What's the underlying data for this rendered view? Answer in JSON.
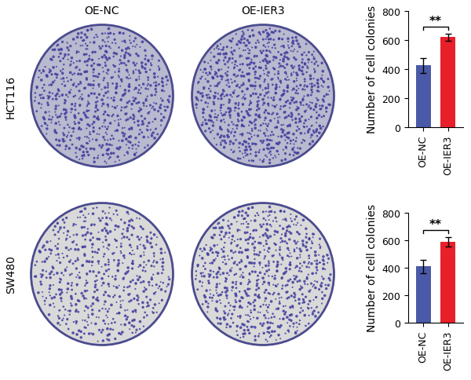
{
  "plates": {
    "columns": [
      "OE-NC",
      "OE-IER3"
    ],
    "rows": [
      "HCT116",
      "SW480"
    ]
  },
  "chart_data": [
    {
      "type": "bar",
      "categories": [
        "OE-NC",
        "OE-IER3"
      ],
      "values": [
        425,
        620
      ],
      "errors": [
        50,
        25
      ],
      "colors": [
        "#4a5aa8",
        "#e8202a"
      ],
      "ylabel": "Number of cell colonies",
      "ylim": [
        0,
        800
      ],
      "yticks": [
        0,
        200,
        400,
        600,
        800
      ],
      "significance": "**"
    },
    {
      "type": "bar",
      "categories": [
        "OE-NC",
        "OE-IER3"
      ],
      "values": [
        410,
        590
      ],
      "errors": [
        50,
        35
      ],
      "colors": [
        "#4a5aa8",
        "#e8202a"
      ],
      "ylabel": "Number of cell colonies",
      "ylim": [
        0,
        800
      ],
      "yticks": [
        0,
        200,
        400,
        600,
        800
      ],
      "significance": "**"
    }
  ]
}
